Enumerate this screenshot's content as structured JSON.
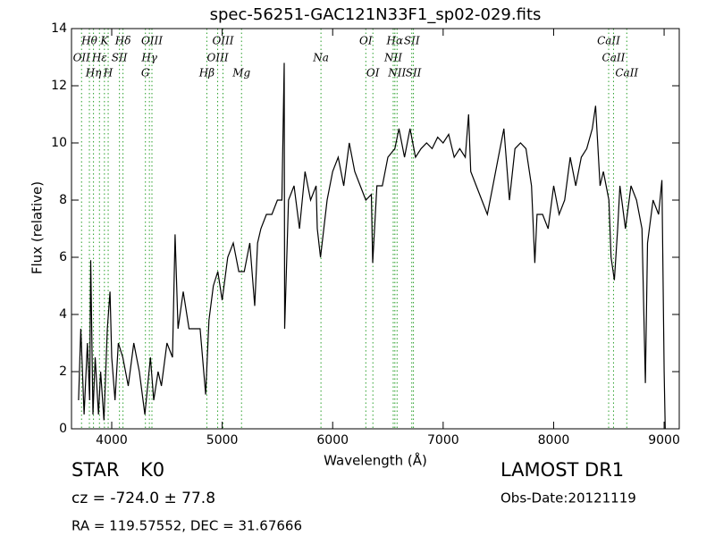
{
  "chart_data": {
    "type": "line",
    "title": "spec-56251-GAC121N33F1_sp02-029.fits",
    "xlabel": "Wavelength (Å)",
    "ylabel": "Flux (relative)",
    "xlim": [
      3636,
      9137
    ],
    "ylim": [
      0,
      14
    ],
    "xticks": [
      4000,
      5000,
      6000,
      7000,
      8000,
      9000
    ],
    "yticks": [
      0,
      2,
      4,
      6,
      8,
      10,
      12,
      14
    ],
    "series": [
      {
        "name": "flux",
        "color": "#000000",
        "x": [
          3700,
          3720,
          3750,
          3780,
          3800,
          3810,
          3830,
          3850,
          3880,
          3900,
          3930,
          3960,
          3985,
          4000,
          4030,
          4060,
          4100,
          4150,
          4200,
          4250,
          4300,
          4350,
          4380,
          4420,
          4450,
          4500,
          4550,
          4574,
          4600,
          4647,
          4700,
          4750,
          4800,
          4850,
          4880,
          4920,
          4960,
          5000,
          5050,
          5100,
          5150,
          5200,
          5250,
          5294,
          5320,
          5350,
          5400,
          5450,
          5500,
          5540,
          5561,
          5565,
          5600,
          5650,
          5700,
          5750,
          5800,
          5850,
          5861,
          5890,
          5950,
          6000,
          6050,
          6100,
          6150,
          6200,
          6250,
          6300,
          6350,
          6362,
          6400,
          6450,
          6500,
          6563,
          6600,
          6650,
          6700,
          6750,
          6800,
          6850,
          6900,
          6950,
          7000,
          7050,
          7100,
          7150,
          7200,
          7230,
          7250,
          7300,
          7350,
          7400,
          7450,
          7500,
          7550,
          7600,
          7650,
          7700,
          7750,
          7800,
          7830,
          7850,
          7900,
          7950,
          8000,
          8050,
          8100,
          8150,
          8200,
          8250,
          8300,
          8350,
          8380,
          8420,
          8450,
          8500,
          8520,
          8550,
          8580,
          8600,
          8650,
          8700,
          8750,
          8800,
          8830,
          8850,
          8900,
          8950,
          8980,
          9000,
          9010
        ],
        "values": [
          1,
          3.5,
          0.5,
          3,
          1,
          5.9,
          0.5,
          2.5,
          0.5,
          2,
          0.3,
          3.5,
          4.8,
          2.5,
          1,
          3,
          2.5,
          1.5,
          3,
          2,
          0.5,
          2.5,
          1,
          2,
          1.5,
          3,
          2.5,
          6.8,
          3.5,
          4.8,
          3.5,
          3.5,
          3.5,
          1.2,
          3.8,
          5,
          5.5,
          4.5,
          6,
          6.5,
          5.5,
          5.5,
          6.5,
          4.3,
          6.5,
          7,
          7.5,
          7.5,
          8,
          8,
          12.8,
          3.5,
          8,
          8.5,
          7,
          9,
          8,
          8.5,
          7,
          6,
          8,
          9,
          9.5,
          8.5,
          10,
          9,
          8.5,
          8,
          8.2,
          5.8,
          8.5,
          8.5,
          9.5,
          9.8,
          10.5,
          9.5,
          10.5,
          9.5,
          9.8,
          10,
          9.8,
          10.2,
          10,
          10.3,
          9.5,
          9.8,
          9.5,
          11,
          9,
          8.5,
          8,
          7.5,
          8.5,
          9.5,
          10.5,
          8,
          9.8,
          10,
          9.8,
          8.5,
          5.8,
          7.5,
          7.5,
          7,
          8.5,
          7.5,
          8,
          9.5,
          8.5,
          9.5,
          9.8,
          10.5,
          11.3,
          8.5,
          9,
          8,
          6,
          5.2,
          7,
          8.5,
          7,
          8.5,
          8,
          7,
          1.6,
          6.5,
          8,
          7.5,
          8.7,
          2,
          0
        ]
      }
    ],
    "lines": [
      {
        "label": "Hθ",
        "x": 3798
      },
      {
        "label": "K",
        "x": 3934
      },
      {
        "label": "Hδ",
        "x": 4102
      },
      {
        "label": "OIII",
        "x": 4364
      },
      {
        "label": "OIII",
        "x": 5007
      },
      {
        "label": "OI",
        "x": 6300
      },
      {
        "label": "Hα",
        "x": 6563
      },
      {
        "label": "SII",
        "x": 6716
      },
      {
        "label": "CaII",
        "x": 8498
      },
      {
        "label": "OII",
        "x": 3727
      },
      {
        "label": "Hε",
        "x": 3889
      },
      {
        "label": "SII",
        "x": 4070
      },
      {
        "label": "Hγ",
        "x": 4341
      },
      {
        "label": "OIII",
        "x": 4959
      },
      {
        "label": "Na",
        "x": 5894
      },
      {
        "label": "NII",
        "x": 6548
      },
      {
        "label": "CaII",
        "x": 8542
      },
      {
        "label": "Hη",
        "x": 3835
      },
      {
        "label": "H",
        "x": 3968
      },
      {
        "label": "G",
        "x": 4305
      },
      {
        "label": "Hβ",
        "x": 4861
      },
      {
        "label": "Mg",
        "x": 5175
      },
      {
        "label": "OI",
        "x": 6364
      },
      {
        "label": "NII",
        "x": 6583
      },
      {
        "label": "SII",
        "x": 6731
      },
      {
        "label": "CaII",
        "x": 8662
      }
    ],
    "line_color": "#2ca02c",
    "object_class": "STAR",
    "subclass": "K0",
    "redshift": "cz = -724.0 ± 77.8",
    "coords": "RA = 119.57552, DEC = 31.67666",
    "survey": "LAMOST DR1",
    "obs_date": "Obs-Date:20121119"
  }
}
